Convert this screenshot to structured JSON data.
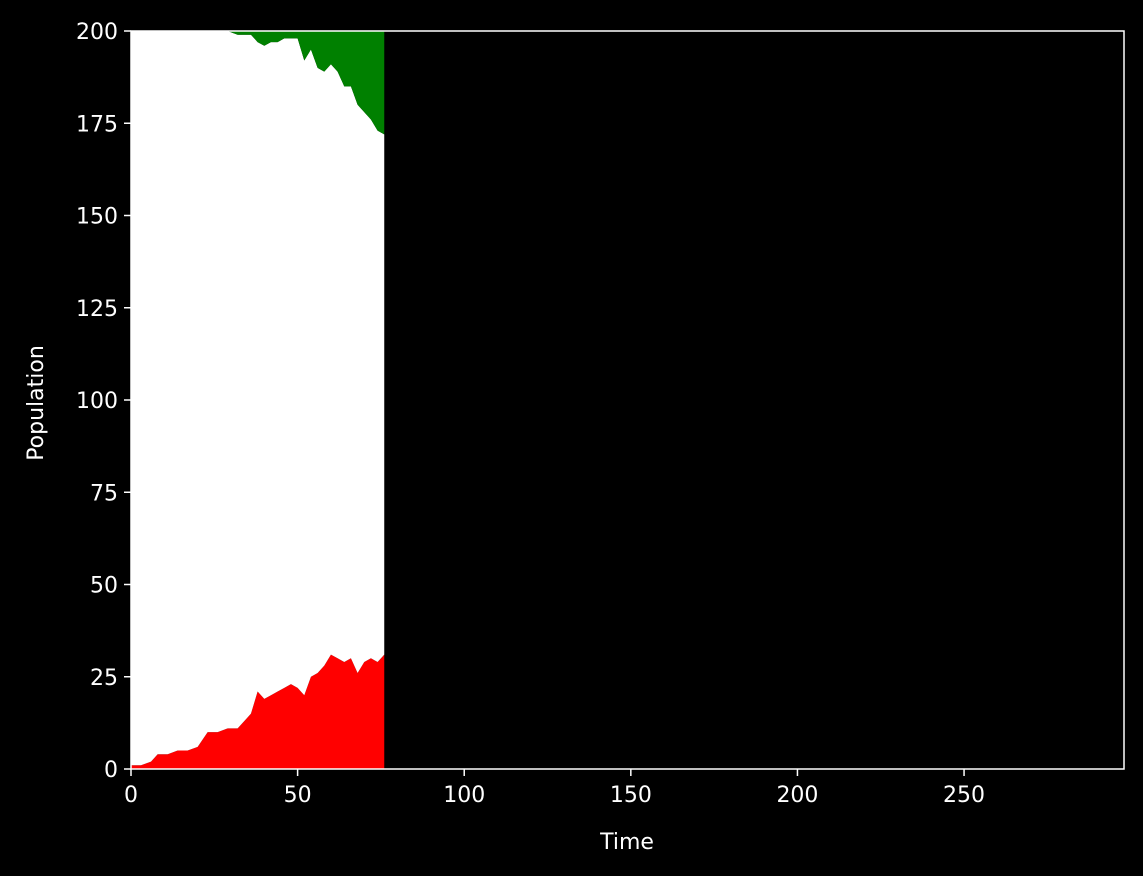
{
  "chart_data": {
    "type": "area",
    "xlabel": "Time",
    "ylabel": "Population",
    "xlim": [
      0,
      298
    ],
    "ylim": [
      0,
      200
    ],
    "xticks": [
      0,
      50,
      100,
      150,
      200,
      250
    ],
    "yticks": [
      0,
      25,
      50,
      75,
      100,
      125,
      150,
      175,
      200
    ],
    "grid": false,
    "background": "#000000",
    "foreground": "#ffffff",
    "x": [
      0,
      3,
      6,
      8,
      11,
      14,
      17,
      20,
      23,
      26,
      29,
      32,
      35,
      36,
      38,
      40,
      42,
      44,
      46,
      48,
      50,
      52,
      54,
      56,
      58,
      60,
      62,
      64,
      66,
      68,
      70,
      72,
      74,
      76
    ],
    "series": [
      {
        "color": "#ff0000",
        "values": [
          1,
          1,
          2,
          4,
          4,
          5,
          5,
          6,
          10,
          10,
          11,
          11,
          14,
          15,
          21,
          19,
          20,
          21,
          22,
          23,
          22,
          20,
          25,
          26,
          28,
          31,
          30,
          29,
          30,
          26,
          29,
          30,
          29,
          31
        ]
      },
      {
        "color": "#ffffff",
        "values": [
          199,
          199,
          198,
          196,
          196,
          195,
          195,
          194,
          190,
          190,
          189,
          188,
          185,
          184,
          176,
          177,
          177,
          176,
          176,
          175,
          176,
          172,
          170,
          164,
          161,
          160,
          159,
          156,
          155,
          154,
          149,
          146,
          144,
          141
        ]
      },
      {
        "color": "#008000",
        "values": [
          0,
          0,
          0,
          0,
          0,
          0,
          0,
          0,
          0,
          0,
          0,
          1,
          1,
          1,
          3,
          4,
          3,
          3,
          2,
          2,
          2,
          8,
          5,
          10,
          11,
          9,
          11,
          15,
          15,
          20,
          22,
          24,
          27,
          28
        ]
      }
    ]
  }
}
